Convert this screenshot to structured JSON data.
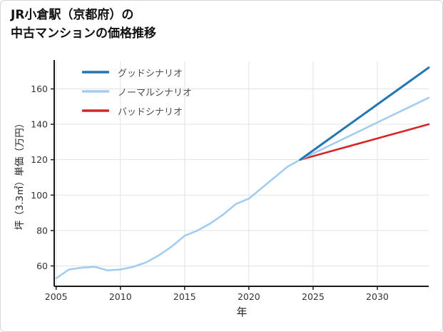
{
  "page": {
    "title_line1": "JR小倉駅（京都府）の",
    "title_line2": "中古マンションの価格推移"
  },
  "chart_data": {
    "type": "line",
    "title": "JR小倉駅（京都府）の中古マンションの価格推移",
    "xlabel": "年",
    "ylabel": "坪（3.3㎡）単価（万円）",
    "xlim": [
      2004.85,
      2034
    ],
    "ylim": [
      48.5,
      175.5
    ],
    "x_ticks": [
      2005,
      2010,
      2015,
      2020,
      2025,
      2030
    ],
    "y_ticks": [
      60,
      80,
      100,
      120,
      140,
      160
    ],
    "grid": true,
    "grid_color": "#e3e3e3",
    "axis_color": "#1a1a1a",
    "legend_position": "top-left",
    "series": [
      {
        "name": "グッドシナリオ",
        "color": "#1f77b4",
        "line_width": 3,
        "x": [
          2024,
          2025,
          2026,
          2027,
          2028,
          2029,
          2030,
          2031,
          2032,
          2033,
          2034
        ],
        "values": [
          120,
          125.2,
          130.4,
          135.6,
          140.8,
          146,
          151.2,
          156.4,
          161.6,
          166.8,
          172
        ]
      },
      {
        "name": "ノーマルシナリオ",
        "color": "#a3cdf0",
        "line_width": 2.6,
        "x": [
          2005,
          2006,
          2007,
          2008,
          2009,
          2010,
          2011,
          2012,
          2013,
          2014,
          2015,
          2016,
          2017,
          2018,
          2019,
          2020,
          2021,
          2022,
          2023,
          2024,
          2025,
          2026,
          2027,
          2028,
          2029,
          2030,
          2031,
          2032,
          2033,
          2034
        ],
        "values": [
          53,
          58,
          59,
          59.5,
          57.5,
          58,
          59.5,
          62,
          66,
          71,
          77,
          80,
          84,
          89,
          95,
          98,
          104,
          110,
          116,
          120,
          123.5,
          127,
          130.5,
          134,
          137.5,
          141,
          144.5,
          148,
          151.5,
          155
        ]
      },
      {
        "name": "バッドシナリオ",
        "color": "#d62728",
        "line_width": 2.6,
        "x": [
          2024,
          2025,
          2026,
          2027,
          2028,
          2029,
          2030,
          2031,
          2032,
          2033,
          2034
        ],
        "values": [
          120,
          122,
          124,
          126,
          128,
          130,
          132,
          134,
          136,
          138,
          140
        ]
      }
    ]
  }
}
